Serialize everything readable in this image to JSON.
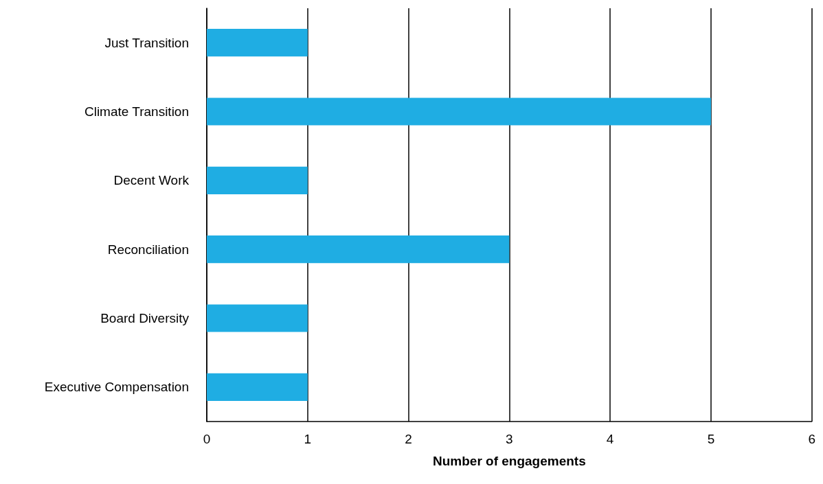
{
  "chart_data": {
    "type": "bar",
    "orientation": "horizontal",
    "xlabel": "Number of engagements",
    "categories": [
      "Just Transition",
      "Climate Transition",
      "Decent Work",
      "Reconciliation",
      "Board Diversity",
      "Executive Compensation"
    ],
    "values": [
      1,
      5,
      1,
      3,
      1,
      1
    ],
    "color": "#1fade3",
    "xlim": [
      0,
      6
    ],
    "xticks": [
      0,
      1,
      2,
      3,
      4,
      5,
      6
    ],
    "grid": "x"
  }
}
